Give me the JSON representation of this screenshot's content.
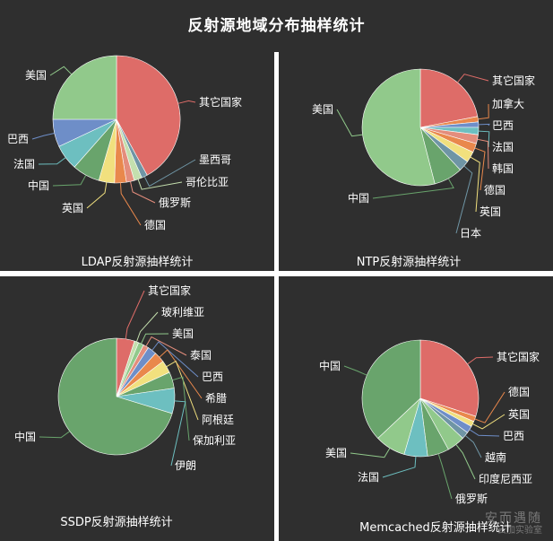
{
  "title": "反射源地域分布抽样统计",
  "watermark": {
    "line1": "安而遇随",
    "line2": "云加实验室"
  },
  "colors": {
    "background": "#2f2f2f",
    "divider": "#ffffff",
    "red": "#de6c68",
    "green": "#91c98b",
    "dark_green": "#69a46c",
    "blue": "#6e8ec8",
    "teal": "#6dbfc0",
    "yellow": "#f1e07e",
    "orange": "#e9884c",
    "salmon": "#e48d7c",
    "slate": "#6f95a5"
  },
  "chart_data": [
    {
      "type": "pie",
      "title": "LDAP反射源抽样统计",
      "slices": [
        {
          "label": "其它国家",
          "value": 42,
          "color": "#de6c68"
        },
        {
          "label": "墨西哥",
          "value": 1.5,
          "color": "#6f95a5"
        },
        {
          "label": "哥伦比亚",
          "value": 2,
          "color": "#c4dfae"
        },
        {
          "label": "俄罗斯",
          "value": 2,
          "color": "#e48d7c"
        },
        {
          "label": "德国",
          "value": 3,
          "color": "#e9884c"
        },
        {
          "label": "英国",
          "value": 4,
          "color": "#f1e07e"
        },
        {
          "label": "中国",
          "value": 7,
          "color": "#69a46c"
        },
        {
          "label": "法国",
          "value": 6.5,
          "color": "#6dbfc0"
        },
        {
          "label": "巴西",
          "value": 7,
          "color": "#6e8ec8"
        },
        {
          "label": "美国",
          "value": 25,
          "color": "#91c98b"
        }
      ]
    },
    {
      "type": "pie",
      "title": "NTP反射源抽样统计",
      "slices": [
        {
          "label": "其它国家",
          "value": 22,
          "color": "#de6c68"
        },
        {
          "label": "加拿大",
          "value": 1.5,
          "color": "#e9884c"
        },
        {
          "label": "巴西",
          "value": 1.5,
          "color": "#6e8ec8"
        },
        {
          "label": "法国",
          "value": 2,
          "color": "#6dbfc0"
        },
        {
          "label": "韩国",
          "value": 2.5,
          "color": "#e48d7c"
        },
        {
          "label": "德国",
          "value": 2.5,
          "color": "#e9884c"
        },
        {
          "label": "英国",
          "value": 3,
          "color": "#f1e07e"
        },
        {
          "label": "日本",
          "value": 3,
          "color": "#6f95a5"
        },
        {
          "label": "中国",
          "value": 8,
          "color": "#69a46c"
        },
        {
          "label": "美国",
          "value": 54,
          "color": "#91c98b"
        }
      ]
    },
    {
      "type": "pie",
      "title": "SSDP反射源抽样统计",
      "slices": [
        {
          "label": "其它国家",
          "value": 5,
          "color": "#de6c68"
        },
        {
          "label": "玻利维亚",
          "value": 1.2,
          "color": "#c4dfae"
        },
        {
          "label": "美国",
          "value": 1.5,
          "color": "#91c98b"
        },
        {
          "label": "泰国",
          "value": 1.5,
          "color": "#e48d7c"
        },
        {
          "label": "巴西",
          "value": 2.5,
          "color": "#6e8ec8"
        },
        {
          "label": "希腊",
          "value": 3,
          "color": "#e9884c"
        },
        {
          "label": "阿根廷",
          "value": 3.5,
          "color": "#f1e07e"
        },
        {
          "label": "保加利亚",
          "value": 4.5,
          "color": "#69a46c"
        },
        {
          "label": "伊朗",
          "value": 7,
          "color": "#6dbfc0"
        },
        {
          "label": "中国",
          "value": 70.3,
          "color": "#69a46c"
        }
      ]
    },
    {
      "type": "pie",
      "title": "Memcached反射源抽样统计",
      "slices": [
        {
          "label": "其它国家",
          "value": 30,
          "color": "#de6c68"
        },
        {
          "label": "德国",
          "value": 1.5,
          "color": "#e9884c"
        },
        {
          "label": "英国",
          "value": 1.5,
          "color": "#f1e07e"
        },
        {
          "label": "巴西",
          "value": 2,
          "color": "#6e8ec8"
        },
        {
          "label": "越南",
          "value": 2,
          "color": "#6f95a5"
        },
        {
          "label": "印度尼西亚",
          "value": 5,
          "color": "#91c98b"
        },
        {
          "label": "俄罗斯",
          "value": 6,
          "color": "#69a46c"
        },
        {
          "label": "法国",
          "value": 6.5,
          "color": "#6dbfc0"
        },
        {
          "label": "美国",
          "value": 8.5,
          "color": "#91c98b"
        },
        {
          "label": "中国",
          "value": 37,
          "color": "#69a46c"
        }
      ]
    }
  ]
}
